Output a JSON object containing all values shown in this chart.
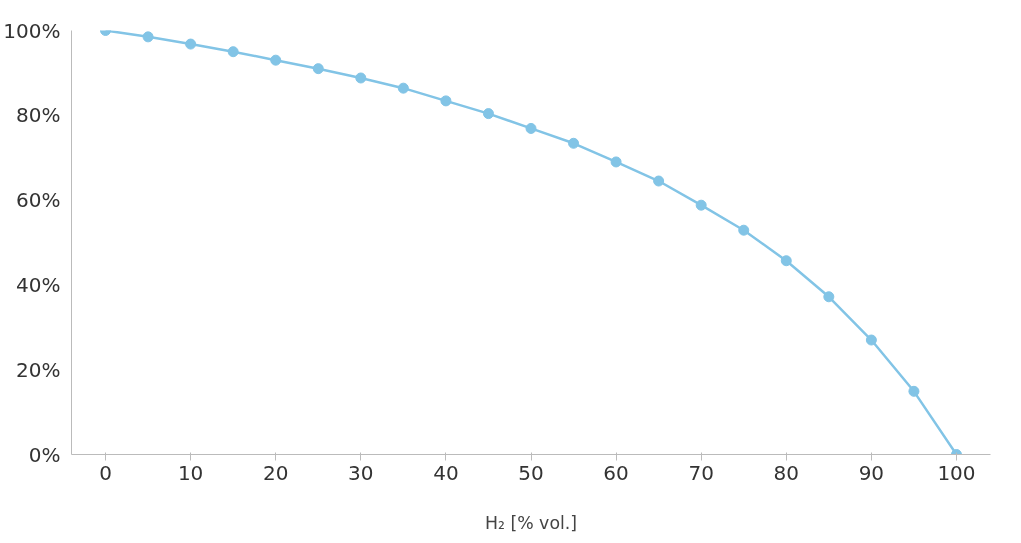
{
  "chart_data": {
    "type": "line",
    "xlabel": "H₂ [% vol.]",
    "x": [
      0,
      5,
      10,
      15,
      20,
      25,
      30,
      35,
      40,
      45,
      50,
      55,
      60,
      65,
      70,
      75,
      80,
      85,
      90,
      95,
      100
    ],
    "series": [
      {
        "color": "#82c4e6",
        "values": [
          100,
          98.5,
          96.8,
          95,
          93,
          91,
          88.8,
          86.4,
          83.4,
          80.4,
          76.9,
          73.4,
          69,
          64.5,
          58.8,
          52.9,
          45.7,
          37.2,
          27,
          14.9,
          0
        ]
      }
    ],
    "xlim": [
      -4,
      104
    ],
    "xticks": [
      0,
      10,
      20,
      30,
      40,
      50,
      60,
      70,
      80,
      90,
      100
    ],
    "ylim": [
      0,
      100
    ],
    "yticks": [
      {
        "value": 0,
        "label": "0%"
      },
      {
        "value": 20,
        "label": "20%"
      },
      {
        "value": 40,
        "label": "40%"
      },
      {
        "value": 60,
        "label": "60%"
      },
      {
        "value": 80,
        "label": "80%"
      },
      {
        "value": 100,
        "label": "100%"
      }
    ],
    "grid": false,
    "marker": "circle",
    "line_style": "solid"
  }
}
